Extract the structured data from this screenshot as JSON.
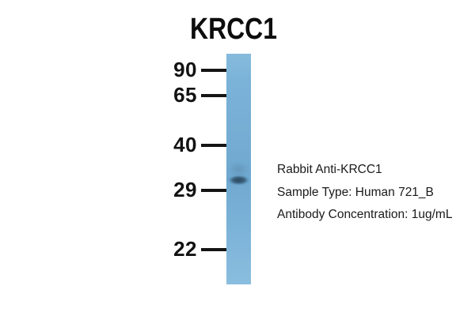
{
  "figure": {
    "title": "KRCC1"
  },
  "ladder": {
    "markers": [
      {
        "label": "90"
      },
      {
        "label": "65"
      },
      {
        "label": "40"
      },
      {
        "label": "29"
      },
      {
        "label": "22"
      }
    ]
  },
  "blot": {
    "band_position": "between 29 and 40 markers, just above 29",
    "lane_color": "#74acd3",
    "band_color": "#2e5068"
  },
  "annotations": {
    "antibody": "Rabbit Anti-KRCC1",
    "sample_type": "Sample Type: Human 721_B",
    "concentration": "Antibody Concentration: 1ug/mL"
  }
}
